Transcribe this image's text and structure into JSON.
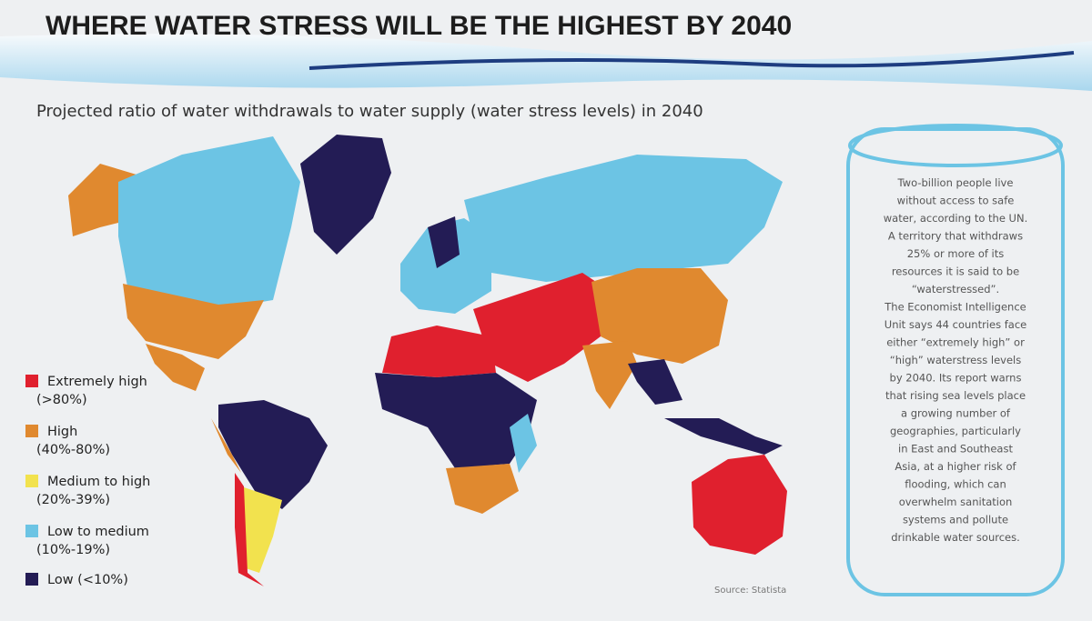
{
  "title": "WHERE WATER STRESS WILL BE THE HIGHEST BY 2040",
  "subtitle": "Projected ratio of water withdrawals to water supply (water stress levels) in 2040",
  "legend": [
    {
      "label": "Extremely high",
      "range": "(>80%)",
      "color": "#e0202e"
    },
    {
      "label": "High",
      "range": "(40%-80%)",
      "color": "#e0892f"
    },
    {
      "label": "Medium to high",
      "range": "(20%-39%)",
      "color": "#f2e24e"
    },
    {
      "label": "Low to medium",
      "range": "(10%-19%)",
      "color": "#6cc4e4"
    },
    {
      "label": "Low (<10%)",
      "color": "#231c55"
    }
  ],
  "sidebar": {
    "lines": [
      "Two-billion people live",
      "without access to safe",
      "water, according to the UN.",
      "A territory that withdraws",
      "25% or more of its",
      "resources it is said to be",
      "“waterstressed”.",
      "The Economist Intelligence",
      "Unit says 44 countries face",
      "either “extremely high” or",
      "“high” waterstress levels",
      "by 2040. Its report warns",
      "that rising sea levels place",
      "a growing number of",
      "geographies, particularly",
      "in East and Southeast",
      "Asia, at a higher risk of",
      "flooding, which can",
      "overwhelm sanitation",
      "systems and pollute",
      "drinkable water sources."
    ]
  },
  "source": "Source: Statista"
}
